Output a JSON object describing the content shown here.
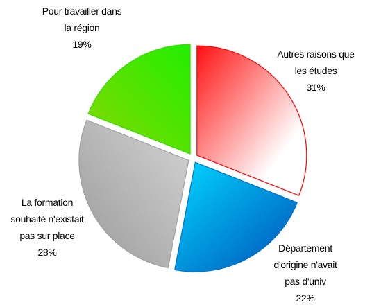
{
  "chart_data": {
    "type": "pie",
    "categories": [
      "Autres raisons que les études",
      "Département d'origine n'avait pas d'univ",
      "La formation souhaité n'existait pas sur place",
      "Pour travailler dans la région"
    ],
    "values": [
      31,
      22,
      28,
      19
    ],
    "value_labels": [
      "31%",
      "22%",
      "28%",
      "19%"
    ],
    "colors": [
      "#ff0000",
      "#0070d0",
      "#a0a0a0",
      "#33dd00"
    ]
  }
}
